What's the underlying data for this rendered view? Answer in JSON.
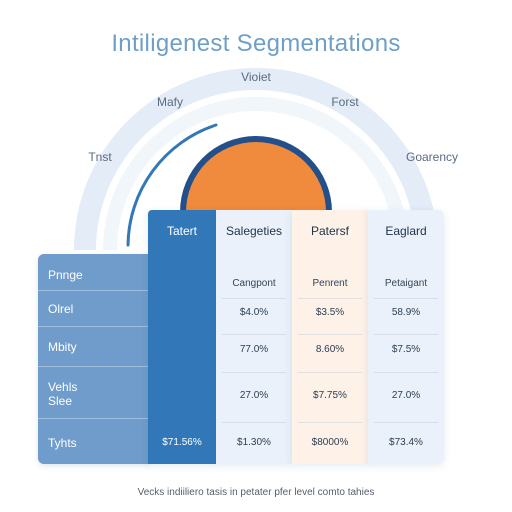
{
  "chart_data": {
    "type": "table",
    "title": "Intiligenest Segmentations",
    "arc_labels": [
      "Tnst",
      "Mafy",
      "Vioiet",
      "Forst",
      "Goarency"
    ],
    "row_labels": [
      "Pnnge",
      "Olrel",
      "Mbity",
      "Vehls\nSlee",
      "Tyhts"
    ],
    "columns": [
      {
        "header": "Tatert",
        "subheader": "",
        "color": "#3278b8",
        "cells": [
          "",
          "",
          "",
          "",
          "$71.56%"
        ]
      },
      {
        "header": "Salegeties",
        "subheader": "Cangpont",
        "color": "#eaf1fa",
        "cells": [
          "",
          "$4.0%",
          "77.0%",
          "27.0%",
          "$1.30%"
        ]
      },
      {
        "header": "Patersf",
        "subheader": "Penrent",
        "color": "#fdf1e8",
        "cells": [
          "",
          "$3.5%",
          "8.60%",
          "$7.75%",
          "$8000%"
        ]
      },
      {
        "header": "Eaglard",
        "subheader": "Petaigant",
        "color": "#eaf1fa",
        "cells": [
          "",
          "58.9%",
          "$7.5%",
          "27.0%",
          "$73.4%"
        ]
      }
    ],
    "accent_colors": {
      "orange": "#f08a3c",
      "blue": "#3278b8",
      "arc": "#dce7f4"
    }
  },
  "footnote": "Vecks indiiliero tasis in petater pfer level comto tahies"
}
